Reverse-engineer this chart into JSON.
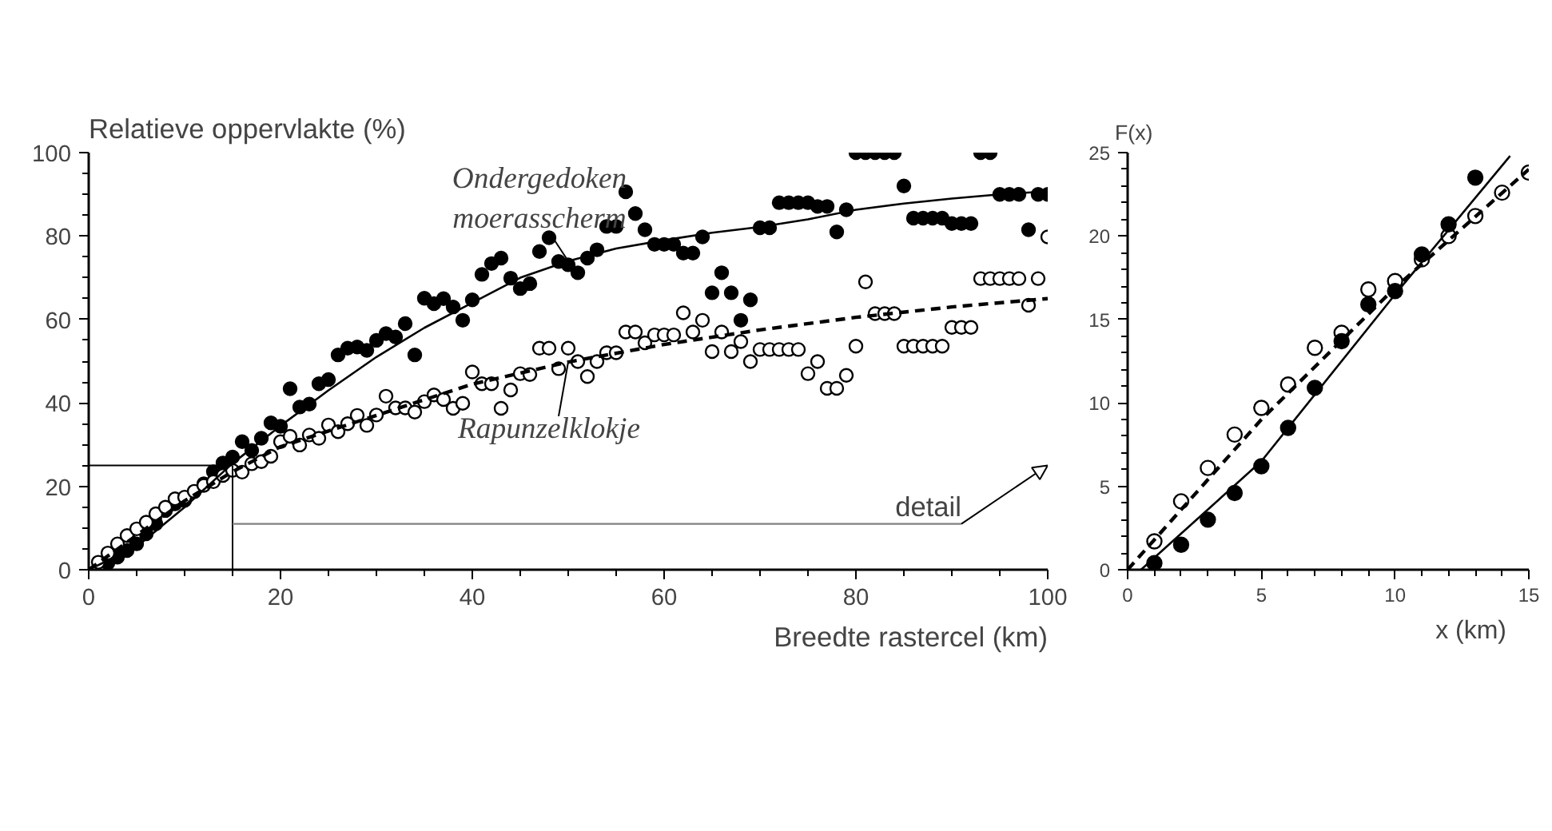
{
  "chart_data": [
    {
      "type": "scatter",
      "ylabel": "Relatieve oppervlakte (%)",
      "xlabel": "Breedte rastercel (km)",
      "xlim": [
        0,
        100
      ],
      "ylim": [
        0,
        100
      ],
      "xticks": [
        0,
        20,
        40,
        60,
        80,
        100
      ],
      "yticks": [
        0,
        20,
        40,
        60,
        80,
        100
      ],
      "grid": false,
      "series": [
        {
          "name": "Ondergedoken moerasscherm",
          "marker": "circle",
          "color": "#000000",
          "x": [
            2,
            3,
            4,
            5,
            6,
            7,
            8,
            9,
            10,
            11,
            12,
            13,
            14,
            15,
            16,
            17,
            18,
            19,
            20,
            21,
            22,
            23,
            24,
            25,
            26,
            27,
            28,
            29,
            30,
            31,
            32,
            33,
            34,
            35,
            36,
            37,
            38,
            39,
            40,
            41,
            42,
            43,
            44,
            45,
            46,
            47,
            48,
            49,
            50,
            51,
            52,
            53,
            54,
            55,
            56,
            57,
            58,
            59,
            60,
            61,
            62,
            63,
            64,
            65,
            66,
            67,
            68,
            69,
            70,
            71,
            72,
            73,
            74,
            75,
            76,
            77,
            78,
            79,
            80,
            81,
            82,
            83,
            84,
            85,
            86,
            87,
            88,
            89,
            90,
            91,
            92,
            93,
            94,
            95,
            96,
            97,
            98,
            99,
            100
          ],
          "values": [
            1.6,
            3.0,
            4.6,
            6.2,
            8.6,
            11,
            14.2,
            15.8,
            16.6,
            18.7,
            20.6,
            23.5,
            25.6,
            27,
            30.7,
            28.6,
            31.5,
            35.2,
            34.4,
            43.4,
            39,
            39.7,
            44.6,
            45.6,
            51.5,
            53.1,
            53.4,
            52.6,
            55,
            56.6,
            55.8,
            59,
            51.5,
            65.1,
            63.8,
            65,
            63,
            59.8,
            64.7,
            70.8,
            73.4,
            74.7,
            69.9,
            67.4,
            68.6,
            76.3,
            79.6,
            73.9,
            73.1,
            71.2,
            74.7,
            76.7,
            82.3,
            82.3,
            90.6,
            85.4,
            81.5,
            78,
            78,
            78,
            75.9,
            75.9,
            79.8,
            66.4,
            71.2,
            66.4,
            59.8,
            64.7,
            82,
            82,
            88,
            88,
            88,
            88,
            87.1,
            87.1,
            81,
            86.3,
            100,
            100,
            100,
            100,
            100,
            92,
            84.3,
            84.3,
            84.3,
            84.3,
            83,
            83,
            83,
            100,
            100,
            90,
            90,
            90,
            81.5,
            90,
            90
          ]
        },
        {
          "name": "Rapunzelklokje",
          "marker": "circle",
          "color": "#ffffff",
          "x": [
            1,
            2,
            3,
            4,
            5,
            6,
            7,
            8,
            9,
            10,
            11,
            12,
            13,
            14,
            15,
            16,
            17,
            18,
            19,
            20,
            21,
            22,
            23,
            24,
            25,
            26,
            27,
            28,
            29,
            30,
            31,
            32,
            33,
            34,
            35,
            36,
            37,
            38,
            39,
            40,
            41,
            42,
            43,
            44,
            45,
            46,
            47,
            48,
            49,
            50,
            51,
            52,
            53,
            54,
            55,
            56,
            57,
            58,
            59,
            60,
            61,
            62,
            63,
            64,
            65,
            66,
            67,
            68,
            69,
            70,
            71,
            72,
            73,
            74,
            75,
            76,
            77,
            78,
            79,
            80,
            81,
            82,
            83,
            84,
            85,
            86,
            87,
            88,
            89,
            90,
            91,
            92,
            93,
            94,
            95,
            96,
            97,
            98,
            99,
            100
          ],
          "values": [
            1.8,
            4,
            6.2,
            8.2,
            9.8,
            11.4,
            13.4,
            15,
            17,
            17.4,
            18.8,
            20.2,
            21.1,
            22.6,
            23.8,
            23.4,
            25.4,
            25.9,
            27.2,
            30.7,
            32,
            29.9,
            32.3,
            31.5,
            34.7,
            33.1,
            35,
            37,
            34.6,
            37.1,
            41.6,
            38.8,
            38.8,
            37.8,
            40.3,
            41.9,
            40.8,
            38.7,
            39.9,
            47.4,
            44.6,
            44.6,
            38.7,
            43.1,
            47,
            46.8,
            53.1,
            53.1,
            48.2,
            53.1,
            49.9,
            46.3,
            49.9,
            52,
            52,
            57,
            57,
            54.4,
            56.3,
            56.3,
            56.3,
            61.6,
            57,
            59.8,
            52.3,
            57,
            52.3,
            54.7,
            49.9,
            52.8,
            52.8,
            52.8,
            52.8,
            52.8,
            47,
            49.9,
            43.5,
            43.5,
            46.6,
            53.6,
            69,
            61.4,
            61.4,
            61.4,
            53.6,
            53.6,
            53.6,
            53.6,
            53.6,
            58.1,
            58.1,
            58.1,
            69.8,
            69.8,
            69.8,
            69.8,
            69.8,
            63.4,
            69.8,
            79.8
          ]
        },
        {
          "type": "line",
          "color": "#000000",
          "line_style": "solid",
          "x": [
            0,
            5,
            10,
            15,
            20,
            25,
            30,
            35,
            40,
            45,
            50,
            55,
            60,
            65,
            70,
            75,
            80,
            85,
            90,
            95,
            100
          ],
          "values": [
            0,
            5.5,
            15,
            25.5,
            34.5,
            43,
            51,
            58,
            64,
            70,
            74,
            77,
            79,
            80.8,
            82.2,
            84,
            86.3,
            87.8,
            89,
            90,
            90.7
          ]
        },
        {
          "type": "line",
          "color": "#000000",
          "line_style": "dashed",
          "x": [
            0,
            10,
            15,
            20,
            30,
            40,
            50,
            60,
            70,
            80,
            90,
            100
          ],
          "values": [
            0,
            16.5,
            23.5,
            29.5,
            37,
            44.5,
            49.8,
            54,
            57.5,
            60.5,
            63,
            65
          ]
        }
      ],
      "ref_lines": [
        {
          "axis": "x",
          "value": 15
        },
        {
          "axis": "y",
          "value": 25
        }
      ],
      "annotations": [
        {
          "text": "detail",
          "x": 15,
          "y": 11
        }
      ]
    },
    {
      "type": "scatter",
      "ylabel": "F(x)",
      "xlabel": "x (km)",
      "xlim": [
        0,
        15
      ],
      "ylim": [
        0,
        25
      ],
      "xticks": [
        0,
        5,
        10,
        15
      ],
      "yticks": [
        0,
        5,
        10,
        15,
        20,
        25
      ],
      "grid": false,
      "series": [
        {
          "marker": "circle",
          "color": "#ffffff",
          "x": [
            1,
            2,
            3,
            4,
            5,
            6,
            7,
            8,
            9,
            10,
            11,
            12,
            13,
            14,
            15
          ],
          "values": [
            1.7,
            4.1,
            6.1,
            8.1,
            9.7,
            11.1,
            13.3,
            14.2,
            16.8,
            17.3,
            18.6,
            20,
            21.2,
            22.6,
            23.8
          ]
        },
        {
          "marker": "circle",
          "color": "#000000",
          "x": [
            1,
            2,
            3,
            4,
            5,
            6,
            7,
            8,
            9,
            10,
            11,
            12,
            13
          ],
          "values": [
            0.4,
            1.5,
            3.0,
            4.6,
            6.2,
            8.5,
            10.9,
            13.7,
            15.9,
            16.7,
            18.9,
            20.7,
            23.5
          ]
        },
        {
          "type": "line",
          "color": "#000000",
          "line_style": "solid",
          "x": [
            0.5,
            5,
            10,
            14.3
          ],
          "values": [
            0,
            6.5,
            16.5,
            24.8
          ]
        },
        {
          "type": "line",
          "color": "#000000",
          "line_style": "dashed",
          "x": [
            0,
            5,
            10,
            15
          ],
          "values": [
            0,
            9,
            16.9,
            24
          ]
        }
      ]
    }
  ]
}
